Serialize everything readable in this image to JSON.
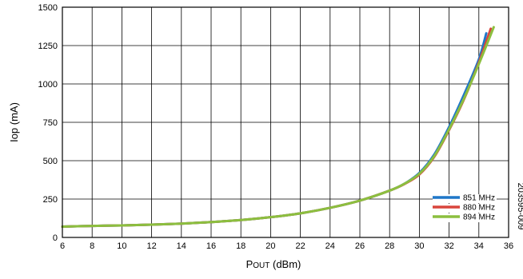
{
  "chart_data": {
    "type": "line",
    "xlabel": {
      "main": "P",
      "sub": "OUT",
      "unit": " (dBm)"
    },
    "ylabel": "Iop (mA)",
    "xlim": [
      6,
      36
    ],
    "ylim": [
      0,
      1500
    ],
    "xticks": [
      "6",
      "8",
      "10",
      "12",
      "14",
      "16",
      "18",
      "20",
      "22",
      "24",
      "26",
      "28",
      "30",
      "32",
      "34",
      "36"
    ],
    "yticks": [
      "0",
      "250",
      "500",
      "750",
      "1000",
      "1250",
      "1500"
    ],
    "grid": true,
    "legend_position": "bottom-right",
    "figure_id": "203595-009",
    "series": [
      {
        "name": "851 MHz",
        "color": "#1f77c8",
        "x": [
          6,
          8,
          10,
          12,
          14,
          16,
          18,
          20,
          22,
          24,
          26,
          28,
          29,
          30,
          31,
          32,
          33,
          34,
          34.5
        ],
        "y": [
          70,
          75,
          78,
          83,
          90,
          100,
          113,
          132,
          157,
          193,
          240,
          305,
          350,
          420,
          540,
          720,
          930,
          1160,
          1330
        ]
      },
      {
        "name": "880 MHz",
        "color": "#d9453d",
        "x": [
          6,
          8,
          10,
          12,
          14,
          16,
          18,
          20,
          22,
          24,
          26,
          28,
          29,
          30,
          31,
          32,
          33,
          34,
          34.8
        ],
        "y": [
          70,
          75,
          78,
          83,
          90,
          100,
          113,
          132,
          157,
          193,
          240,
          305,
          348,
          410,
          525,
          700,
          900,
          1140,
          1360
        ]
      },
      {
        "name": "894 MHz",
        "color": "#8cbf3f",
        "x": [
          6,
          8,
          10,
          12,
          14,
          16,
          18,
          20,
          22,
          24,
          26,
          28,
          29,
          30,
          31,
          32,
          33,
          34,
          35
        ],
        "y": [
          70,
          75,
          78,
          83,
          90,
          100,
          113,
          132,
          157,
          193,
          240,
          305,
          350,
          415,
          530,
          705,
          905,
          1130,
          1370
        ]
      }
    ]
  }
}
